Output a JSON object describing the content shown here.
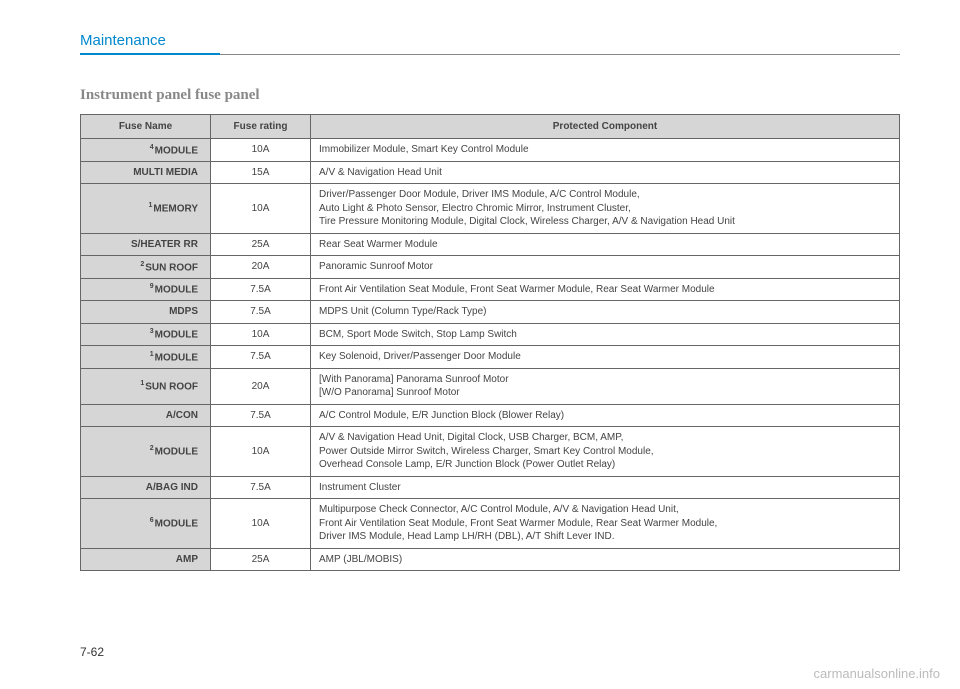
{
  "header": {
    "tab": "Maintenance"
  },
  "section": {
    "title": "Instrument panel fuse panel"
  },
  "table": {
    "columns": [
      "Fuse Name",
      "Fuse rating",
      "Protected Component"
    ],
    "rows": [
      {
        "sup": "4",
        "name": "MODULE",
        "rating": "10A",
        "comp": "Immobilizer Module, Smart Key Control Module"
      },
      {
        "sup": "",
        "name": "MULTI MEDIA",
        "rating": "15A",
        "comp": "A/V & Navigation Head Unit"
      },
      {
        "sup": "1",
        "name": "MEMORY",
        "rating": "10A",
        "comp": "Driver/Passenger Door Module, Driver IMS Module, A/C Control Module,\nAuto Light & Photo Sensor, Electro Chromic Mirror, Instrument Cluster,\nTire Pressure Monitoring Module, Digital Clock, Wireless Charger, A/V & Navigation Head Unit"
      },
      {
        "sup": "",
        "name": "S/HEATER RR",
        "rating": "25A",
        "comp": "Rear Seat Warmer Module"
      },
      {
        "sup": "2",
        "name": "SUN ROOF",
        "rating": "20A",
        "comp": "Panoramic Sunroof Motor"
      },
      {
        "sup": "9",
        "name": "MODULE",
        "rating": "7.5A",
        "comp": "Front Air Ventilation Seat Module, Front Seat Warmer Module, Rear Seat Warmer Module"
      },
      {
        "sup": "",
        "name": "MDPS",
        "rating": "7.5A",
        "comp": "MDPS Unit (Column Type/Rack Type)"
      },
      {
        "sup": "3",
        "name": "MODULE",
        "rating": "10A",
        "comp": "BCM, Sport Mode Switch, Stop Lamp Switch"
      },
      {
        "sup": "1",
        "name": "MODULE",
        "rating": "7.5A",
        "comp": "Key Solenoid, Driver/Passenger Door Module"
      },
      {
        "sup": "1",
        "name": "SUN ROOF",
        "rating": "20A",
        "comp": "[With Panorama] Panorama Sunroof Motor\n[W/O Panorama] Sunroof Motor"
      },
      {
        "sup": "",
        "name": "A/CON",
        "rating": "7.5A",
        "comp": "A/C Control Module, E/R Junction Block (Blower Relay)"
      },
      {
        "sup": "2",
        "name": "MODULE",
        "rating": "10A",
        "comp": "A/V & Navigation Head Unit, Digital Clock, USB Charger, BCM, AMP,\nPower Outside Mirror Switch, Wireless Charger, Smart Key Control Module,\nOverhead Console Lamp, E/R Junction Block (Power Outlet Relay)"
      },
      {
        "sup": "",
        "name": "A/BAG IND",
        "rating": "7.5A",
        "comp": "Instrument Cluster"
      },
      {
        "sup": "6",
        "name": "MODULE",
        "rating": "10A",
        "comp": "Multipurpose Check Connector, A/C Control Module, A/V & Navigation Head Unit,\nFront Air Ventilation Seat Module, Front Seat Warmer Module, Rear Seat Warmer Module,\nDriver IMS Module, Head Lamp LH/RH (DBL), A/T Shift Lever IND."
      },
      {
        "sup": "",
        "name": "AMP",
        "rating": "25A",
        "comp": "AMP (JBL/MOBIS)"
      }
    ]
  },
  "pageNumber": "7-62",
  "watermark": "carmanualsonline.info"
}
